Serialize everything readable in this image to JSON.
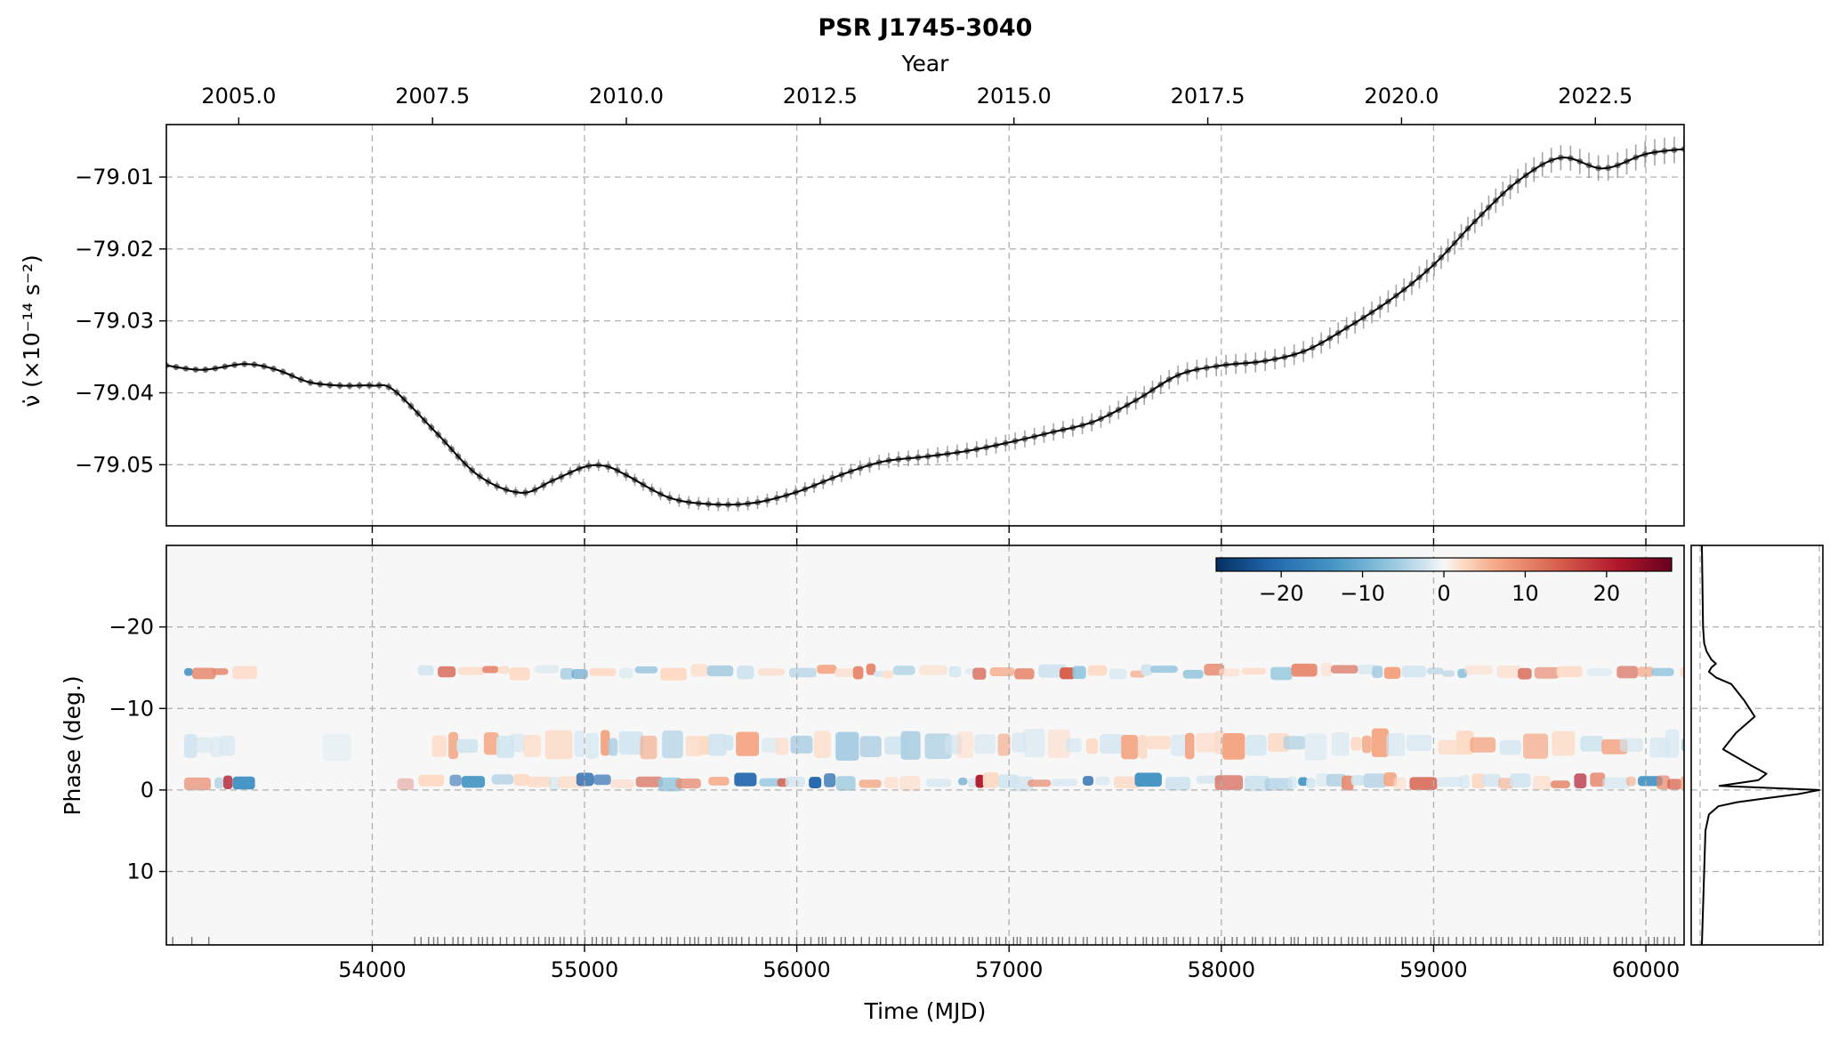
{
  "title": "PSR J1745-3040",
  "top_axis_label": "Year",
  "bottom_axis_label": "Time (MJD)",
  "colors": {
    "line": "#000000",
    "points": "#555555",
    "grid": "#b0b0b0",
    "background": "#f7f7f7"
  },
  "chart_data": [
    {
      "type": "line",
      "panel": "spin-down",
      "ylabel": "ν̇ (×10⁻¹⁴ s⁻²)",
      "xlabel": "Year",
      "xlim": [
        53030,
        60180
      ],
      "ylim": [
        -79.0585,
        -79.0027
      ],
      "grid": true,
      "year_ticks": [
        2005.0,
        2007.5,
        2010.0,
        2012.5,
        2015.0,
        2017.5,
        2020.0,
        2022.5
      ],
      "year_tick_labels": [
        "2005.0",
        "2007.5",
        "2010.0",
        "2012.5",
        "2015.0",
        "2017.5",
        "2020.0",
        "2022.5"
      ],
      "year_tick_mjd": [
        53371,
        54284,
        55197,
        56110,
        57023,
        57936,
        58849,
        59762
      ],
      "mjd_grid": [
        54000,
        55000,
        56000,
        57000,
        58000,
        59000,
        60000
      ],
      "y_ticks": [
        -79.01,
        -79.02,
        -79.03,
        -79.04,
        -79.05
      ],
      "y_tick_labels": [
        "−79.01",
        "−79.02",
        "−79.03",
        "−79.04",
        "−79.05"
      ],
      "x": [
        53030,
        53200,
        53400,
        53550,
        53700,
        53850,
        54000,
        54100,
        54300,
        54500,
        54700,
        54850,
        55000,
        55100,
        55200,
        55400,
        55600,
        55800,
        56000,
        56200,
        56400,
        56600,
        56800,
        57000,
        57200,
        57400,
        57600,
        57800,
        58000,
        58200,
        58400,
        58600,
        58800,
        59000,
        59200,
        59400,
        59600,
        59800,
        60000,
        60180
      ],
      "y": [
        -79.0362,
        -79.0368,
        -79.036,
        -79.0368,
        -79.0385,
        -79.039,
        -79.039,
        -79.0396,
        -79.0455,
        -79.0515,
        -79.0539,
        -79.0522,
        -79.0503,
        -79.0502,
        -79.0515,
        -79.0546,
        -79.0555,
        -79.0553,
        -79.0538,
        -79.0515,
        -79.0496,
        -79.0489,
        -79.0481,
        -79.0469,
        -79.0455,
        -79.044,
        -79.041,
        -79.0375,
        -79.0362,
        -79.0356,
        -79.0341,
        -79.0308,
        -79.027,
        -79.0222,
        -79.016,
        -79.0105,
        -79.0073,
        -79.0088,
        -79.0068,
        -79.0061
      ]
    },
    {
      "type": "heatmap",
      "panel": "phase-residuals",
      "ylabel": "Phase (deg.)",
      "xlabel": "Time (MJD)",
      "xlim": [
        53030,
        60180
      ],
      "ylim": [
        19,
        -30
      ],
      "grid": true,
      "x_ticks": [
        54000,
        55000,
        56000,
        57000,
        58000,
        59000,
        60000
      ],
      "x_tick_labels": [
        "54000",
        "55000",
        "56000",
        "57000",
        "58000",
        "59000",
        "60000"
      ],
      "y_ticks": [
        -20,
        -10,
        0,
        10
      ],
      "y_tick_labels": [
        "−20",
        "−10",
        "0",
        "10"
      ],
      "bands_phase_deg": [
        -14.5,
        -5.5,
        -1
      ],
      "obs_gap_mjd": [
        53350,
        54200
      ],
      "colorbar": {
        "cmap": "RdBu_r",
        "range": [
          -28,
          28
        ],
        "ticks": [
          -20,
          -10,
          0,
          10,
          20
        ],
        "tick_labels": [
          "−20",
          "−10",
          "0",
          "10",
          "20"
        ],
        "location": "top-right"
      }
    },
    {
      "type": "line",
      "panel": "average-profile",
      "x": [
        0.0,
        0.01,
        0.02,
        0.04,
        0.08,
        0.12,
        0.08,
        0.06,
        0.12,
        0.25,
        0.36,
        0.45,
        0.29,
        0.18,
        0.42,
        0.55,
        0.48,
        0.15,
        1.0,
        0.82,
        0.55,
        0.3,
        0.14,
        0.06,
        0.03,
        0.0
      ],
      "y": [
        -30,
        -20,
        -18,
        -17,
        -16,
        -15.5,
        -15,
        -14.5,
        -13.8,
        -13,
        -11,
        -9,
        -7,
        -5,
        -3,
        -2,
        -1.2,
        -0.5,
        0,
        0.5,
        1,
        1.5,
        2,
        3,
        5,
        19
      ]
    }
  ]
}
